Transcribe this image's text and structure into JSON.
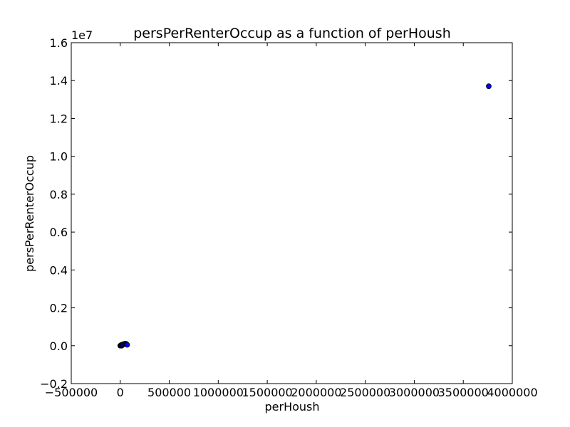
{
  "chart_data": {
    "type": "scatter",
    "title": "persPerRenterOccup as a function of perHoush",
    "xlabel": "perHoush",
    "ylabel": "persPerRenterOccup",
    "xlim": [
      -500000,
      4000000
    ],
    "ylim": [
      -0.2,
      1.6
    ],
    "y_offset_label": "1e7",
    "xticks": [
      {
        "value": -500000,
        "label": "−500000"
      },
      {
        "value": 0,
        "label": "0"
      },
      {
        "value": 500000,
        "label": "500000"
      },
      {
        "value": 1000000,
        "label": "1000000"
      },
      {
        "value": 1500000,
        "label": "1500000"
      },
      {
        "value": 2000000,
        "label": "2000000"
      },
      {
        "value": 2500000,
        "label": "2500000"
      },
      {
        "value": 3000000,
        "label": "3000000"
      },
      {
        "value": 3500000,
        "label": "3500000"
      },
      {
        "value": 4000000,
        "label": "4000000"
      }
    ],
    "yticks": [
      {
        "value": -0.2,
        "label": "−0.2"
      },
      {
        "value": 0.0,
        "label": "0.0"
      },
      {
        "value": 0.2,
        "label": "0.2"
      },
      {
        "value": 0.4,
        "label": "0.4"
      },
      {
        "value": 0.6,
        "label": "0.6"
      },
      {
        "value": 0.8,
        "label": "0.8"
      },
      {
        "value": 1.0,
        "label": "1.0"
      },
      {
        "value": 1.2,
        "label": "1.2"
      },
      {
        "value": 1.4,
        "label": "1.4"
      },
      {
        "value": 1.6,
        "label": "1.6"
      }
    ],
    "marker_color": "#0000ff",
    "marker_edge": "#000000",
    "grid": false,
    "points": [
      {
        "x": 0,
        "y": 0.0
      },
      {
        "x": 5000,
        "y": 0.002
      },
      {
        "x": 10000,
        "y": 0.004
      },
      {
        "x": 15000,
        "y": 0.0
      },
      {
        "x": 20000,
        "y": 0.003
      },
      {
        "x": 25000,
        "y": 0.006
      },
      {
        "x": 30000,
        "y": 0.008
      },
      {
        "x": 40000,
        "y": 0.009
      },
      {
        "x": 50000,
        "y": 0.011
      },
      {
        "x": 60000,
        "y": 0.01
      },
      {
        "x": 65000,
        "y": 0.007
      },
      {
        "x": 70000,
        "y": 0.005
      },
      {
        "x": 3760000,
        "y": 1.37
      }
    ]
  }
}
